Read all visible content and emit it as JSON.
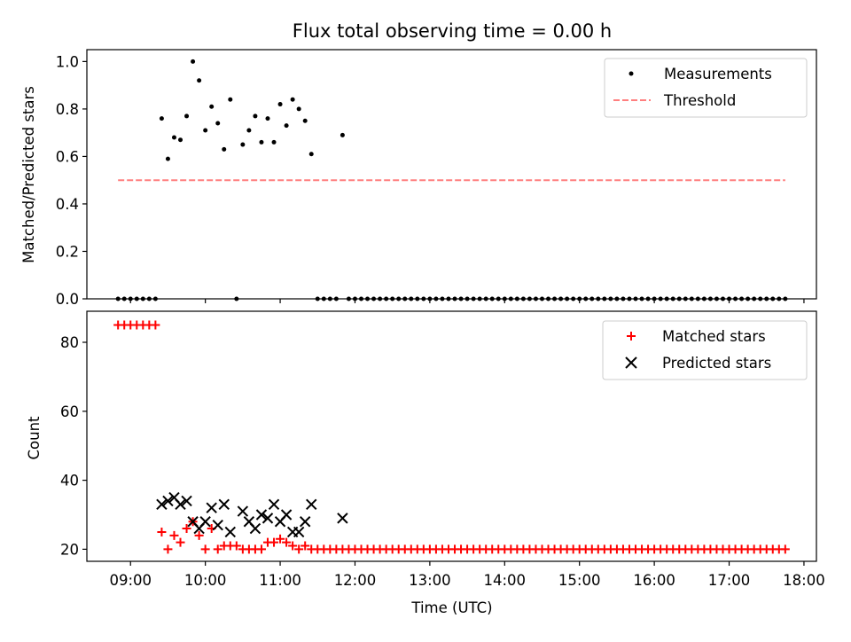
{
  "chart_data": [
    {
      "type": "scatter",
      "title": "Flux total observing time = 0.00 h",
      "xlabel": "",
      "ylabel": "Matched/Predicted stars",
      "ylim": [
        0,
        1.05
      ],
      "yticks": [
        "0.0",
        "0.2",
        "0.4",
        "0.6",
        "0.8",
        "1.0"
      ],
      "legend_position": "top-right",
      "colors": {
        "measurements": "#000000",
        "threshold": "#ff7f7f"
      },
      "series": [
        {
          "name": "Measurements",
          "marker": "dot",
          "points": [
            [
              "08:50",
              0
            ],
            [
              "08:55",
              0
            ],
            [
              "09:00",
              0
            ],
            [
              "09:05",
              0
            ],
            [
              "09:10",
              0
            ],
            [
              "09:15",
              0
            ],
            [
              "09:20",
              0
            ],
            [
              "09:25",
              0.76
            ],
            [
              "09:30",
              0.59
            ],
            [
              "09:35",
              0.68
            ],
            [
              "09:40",
              0.67
            ],
            [
              "09:45",
              0.77
            ],
            [
              "09:50",
              1.0
            ],
            [
              "09:55",
              0.92
            ],
            [
              "10:00",
              0.71
            ],
            [
              "10:05",
              0.81
            ],
            [
              "10:10",
              0.74
            ],
            [
              "10:15",
              0.63
            ],
            [
              "10:20",
              0.84
            ],
            [
              "10:25",
              0.0
            ],
            [
              "10:30",
              0.65
            ],
            [
              "10:35",
              0.71
            ],
            [
              "10:40",
              0.77
            ],
            [
              "10:45",
              0.66
            ],
            [
              "10:50",
              0.76
            ],
            [
              "10:55",
              0.66
            ],
            [
              "11:00",
              0.82
            ],
            [
              "11:05",
              0.73
            ],
            [
              "11:10",
              0.84
            ],
            [
              "11:15",
              0.8
            ],
            [
              "11:20",
              0.75
            ],
            [
              "11:25",
              0.61
            ],
            [
              "11:30",
              0
            ],
            [
              "11:35",
              0
            ],
            [
              "11:40",
              0
            ],
            [
              "11:45",
              0
            ],
            [
              "11:50",
              0.69
            ]
          ],
          "zero_run": {
            "start": "11:55",
            "end": "17:45",
            "step_minutes": 5,
            "value": 0
          }
        },
        {
          "name": "Threshold",
          "style": "dashed",
          "x": [
            "08:50",
            "17:45"
          ],
          "y": [
            0.5,
            0.5
          ]
        }
      ]
    },
    {
      "type": "scatter",
      "title": "",
      "xlabel": "Time (UTC)",
      "ylabel": "Count",
      "ylim": [
        16.5,
        89
      ],
      "yticks": [
        "20",
        "40",
        "60",
        "80"
      ],
      "xlim": [
        "08:25",
        "18:10"
      ],
      "xticks": [
        "09:00",
        "10:00",
        "11:00",
        "12:00",
        "13:00",
        "14:00",
        "15:00",
        "16:00",
        "17:00",
        "18:00"
      ],
      "legend_position": "top-right",
      "colors": {
        "matched": "#ff0000",
        "predicted": "#000000"
      },
      "series": [
        {
          "name": "Matched stars",
          "marker": "plus",
          "points": [
            [
              "08:50",
              85
            ],
            [
              "08:55",
              85
            ],
            [
              "09:00",
              85
            ],
            [
              "09:05",
              85
            ],
            [
              "09:10",
              85
            ],
            [
              "09:15",
              85
            ],
            [
              "09:20",
              85
            ],
            [
              "09:25",
              25
            ],
            [
              "09:30",
              20
            ],
            [
              "09:35",
              24
            ],
            [
              "09:40",
              22
            ],
            [
              "09:45",
              26
            ],
            [
              "09:50",
              28
            ],
            [
              "09:55",
              24
            ],
            [
              "10:00",
              20
            ],
            [
              "10:05",
              26
            ],
            [
              "10:10",
              20
            ],
            [
              "10:15",
              21
            ],
            [
              "10:20",
              21
            ],
            [
              "10:25",
              21
            ],
            [
              "10:30",
              20
            ],
            [
              "10:35",
              20
            ],
            [
              "10:40",
              20
            ],
            [
              "10:45",
              20
            ],
            [
              "10:50",
              22
            ],
            [
              "10:55",
              22
            ],
            [
              "11:00",
              23
            ],
            [
              "11:05",
              22
            ],
            [
              "11:10",
              21
            ],
            [
              "11:15",
              20
            ],
            [
              "11:20",
              21
            ],
            [
              "11:25",
              20
            ],
            [
              "11:30",
              20
            ],
            [
              "11:35",
              20
            ],
            [
              "11:40",
              20
            ],
            [
              "11:45",
              20
            ],
            [
              "11:50",
              20
            ]
          ],
          "constant_run": {
            "start": "11:55",
            "end": "17:45",
            "step_minutes": 5,
            "value": 20
          }
        },
        {
          "name": "Predicted stars",
          "marker": "x",
          "points": [
            [
              "09:25",
              33
            ],
            [
              "09:30",
              34
            ],
            [
              "09:35",
              35
            ],
            [
              "09:40",
              33
            ],
            [
              "09:45",
              34
            ],
            [
              "09:50",
              28
            ],
            [
              "09:55",
              26
            ],
            [
              "10:00",
              28
            ],
            [
              "10:05",
              32
            ],
            [
              "10:10",
              27
            ],
            [
              "10:15",
              33
            ],
            [
              "10:20",
              25
            ],
            [
              "10:30",
              31
            ],
            [
              "10:35",
              28
            ],
            [
              "10:40",
              26
            ],
            [
              "10:45",
              30
            ],
            [
              "10:50",
              29
            ],
            [
              "10:55",
              33
            ],
            [
              "11:00",
              28
            ],
            [
              "11:05",
              30
            ],
            [
              "11:10",
              25
            ],
            [
              "11:15",
              25
            ],
            [
              "11:20",
              28
            ],
            [
              "11:25",
              33
            ],
            [
              "11:50",
              29
            ]
          ]
        }
      ]
    }
  ]
}
